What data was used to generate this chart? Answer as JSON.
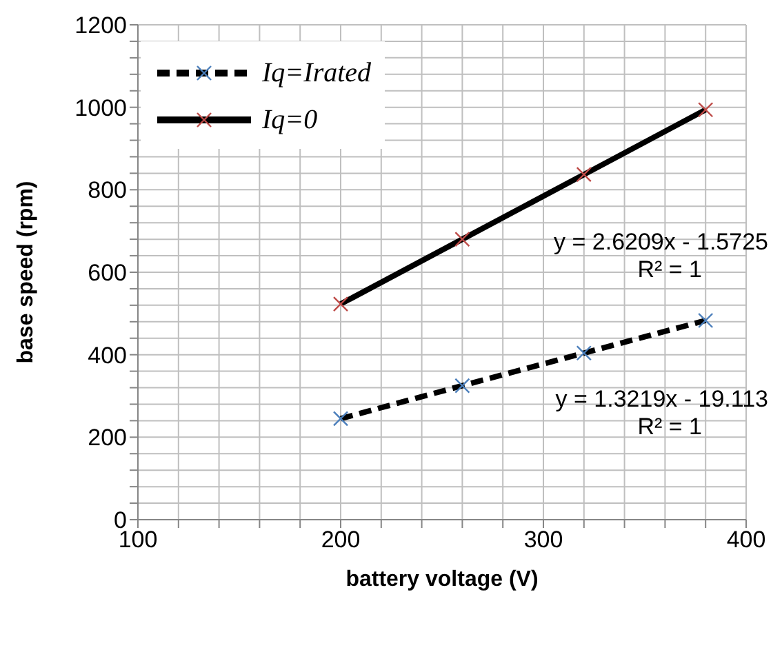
{
  "chart_data": {
    "type": "line",
    "xlabel": "battery voltage (V)",
    "ylabel": "base speed (rpm)",
    "x": [
      200,
      260,
      320,
      380
    ],
    "series": [
      {
        "name": "Iq=Irated",
        "color": "#000000",
        "values": [
          245,
          325,
          404,
          483
        ],
        "line_style": "dashed",
        "marker": "cross"
      },
      {
        "name": "Iq=0",
        "color": "#000000",
        "values": [
          523,
          680,
          837,
          994
        ],
        "line_style": "solid",
        "marker": "cross"
      }
    ],
    "xlim": [
      100,
      400
    ],
    "xticks": [
      100,
      {
        "value": 120,
        "label": null
      },
      {
        "value": 140,
        "label": null
      },
      {
        "value": 160,
        "label": null
      },
      {
        "value": 180,
        "label": null
      },
      200,
      {
        "value": 220,
        "label": null
      },
      {
        "value": 240,
        "label": null
      },
      {
        "value": 260,
        "label": null
      },
      {
        "value": 280,
        "label": null
      },
      300,
      {
        "value": 320,
        "label": null
      },
      {
        "value": 340,
        "label": null
      },
      {
        "value": 360,
        "label": null
      },
      {
        "value": 380,
        "label": null
      },
      400
    ],
    "ylim": [
      0,
      1200
    ],
    "yticks": [
      0,
      {
        "value": 40,
        "label": null
      },
      {
        "value": 80,
        "label": null
      },
      {
        "value": 120,
        "label": null
      },
      {
        "value": 160,
        "label": null
      },
      200,
      {
        "value": 240,
        "label": null
      },
      {
        "value": 280,
        "label": null
      },
      {
        "value": 320,
        "label": null
      },
      {
        "value": 360,
        "label": null
      },
      400,
      {
        "value": 440,
        "label": null
      },
      {
        "value": 480,
        "label": null
      },
      {
        "value": 520,
        "label": null
      },
      {
        "value": 560,
        "label": null
      },
      600,
      {
        "value": 640,
        "label": null
      },
      {
        "value": 680,
        "label": null
      },
      {
        "value": 720,
        "label": null
      },
      {
        "value": 760,
        "label": null
      },
      800,
      {
        "value": 840,
        "label": null
      },
      {
        "value": 880,
        "label": null
      },
      {
        "value": 920,
        "label": null
      },
      {
        "value": 960,
        "label": null
      },
      1000,
      {
        "value": 1040,
        "label": null
      },
      {
        "value": 1080,
        "label": null
      },
      {
        "value": 1120,
        "label": null
      },
      {
        "value": 1160,
        "label": null
      },
      1200
    ],
    "grid": true,
    "legend": "top left",
    "annotations": [
      "y = 2.6209x - 1.5725",
      "R² = 1",
      "y = 1.3219x - 19.113",
      "R² = 1"
    ]
  }
}
